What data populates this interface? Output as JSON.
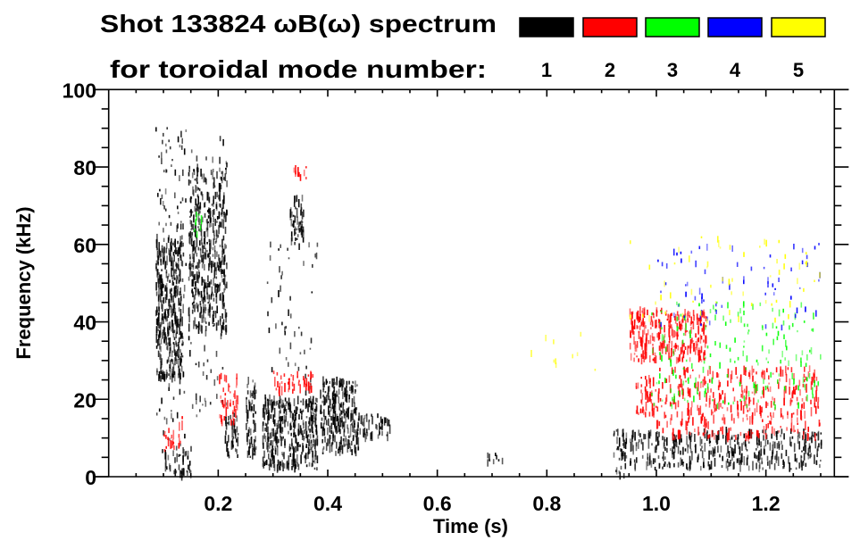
{
  "chart_data": {
    "type": "heatmap",
    "title_line1": "Shot 133824 ωB(ω) spectrum",
    "title_line2": "for toroidal mode number:",
    "xlabel": "Time (s)",
    "ylabel": "Frequency (kHz)",
    "xlim": [
      0,
      1.325
    ],
    "ylim": [
      0,
      100
    ],
    "xticks": [
      0.2,
      0.4,
      0.6,
      0.8,
      1.0,
      1.2
    ],
    "xtick_labels": [
      "0.2",
      "0.4",
      "0.6",
      "0.8",
      "1.0",
      "1.2"
    ],
    "yticks": [
      0,
      20,
      40,
      60,
      80,
      100
    ],
    "ytick_labels": [
      "0",
      "20",
      "40",
      "60",
      "80",
      "100"
    ],
    "x_minor_step": 0.05,
    "y_minor_step": 5,
    "legend": [
      {
        "mode": "1",
        "color": "#000000"
      },
      {
        "mode": "2",
        "color": "#ff0000"
      },
      {
        "mode": "3",
        "color": "#00ff00"
      },
      {
        "mode": "4",
        "color": "#0000ff"
      },
      {
        "mode": "5",
        "color": "#ffff00"
      }
    ],
    "regions": [
      {
        "mode": 1,
        "t": [
          0.085,
          0.135
        ],
        "f": [
          25,
          62
        ],
        "density": 1.0
      },
      {
        "mode": 1,
        "t": [
          0.085,
          0.14
        ],
        "f": [
          5,
          90
        ],
        "density": 0.12
      },
      {
        "mode": 1,
        "t": [
          0.145,
          0.215
        ],
        "f": [
          38,
          80
        ],
        "density": 0.7
      },
      {
        "mode": 1,
        "t": [
          0.145,
          0.215
        ],
        "f": [
          15,
          88
        ],
        "density": 0.1
      },
      {
        "mode": 1,
        "t": [
          0.095,
          0.15
        ],
        "f": [
          0,
          8
        ],
        "density": 0.5
      },
      {
        "mode": 1,
        "t": [
          0.21,
          0.235
        ],
        "f": [
          5,
          16
        ],
        "density": 0.8
      },
      {
        "mode": 1,
        "t": [
          0.25,
          0.268
        ],
        "f": [
          5,
          25
        ],
        "density": 0.9
      },
      {
        "mode": 1,
        "t": [
          0.28,
          0.38
        ],
        "f": [
          2,
          20
        ],
        "density": 1.0
      },
      {
        "mode": 1,
        "t": [
          0.28,
          0.38
        ],
        "f": [
          20,
          60
        ],
        "density": 0.07
      },
      {
        "mode": 1,
        "t": [
          0.33,
          0.355
        ],
        "f": [
          60,
          72
        ],
        "density": 0.9
      },
      {
        "mode": 1,
        "t": [
          0.385,
          0.455
        ],
        "f": [
          6,
          25
        ],
        "density": 0.95
      },
      {
        "mode": 1,
        "t": [
          0.455,
          0.515
        ],
        "f": [
          10,
          16
        ],
        "density": 0.7
      },
      {
        "mode": 1,
        "t": [
          0.69,
          0.72
        ],
        "f": [
          3,
          6
        ],
        "density": 0.5
      },
      {
        "mode": 1,
        "t": [
          0.92,
          0.945
        ],
        "f": [
          0,
          12
        ],
        "density": 0.6
      },
      {
        "mode": 1,
        "t": [
          0.95,
          1.3
        ],
        "f": [
          2,
          12
        ],
        "density": 0.55
      },
      {
        "mode": 2,
        "t": [
          0.1,
          0.135
        ],
        "f": [
          6,
          16
        ],
        "density": 0.35
      },
      {
        "mode": 2,
        "t": [
          0.2,
          0.235
        ],
        "f": [
          14,
          26
        ],
        "density": 0.5
      },
      {
        "mode": 2,
        "t": [
          0.3,
          0.375
        ],
        "f": [
          22,
          27
        ],
        "density": 0.6
      },
      {
        "mode": 2,
        "t": [
          0.335,
          0.36
        ],
        "f": [
          77,
          80
        ],
        "density": 0.6
      },
      {
        "mode": 2,
        "t": [
          0.95,
          1.09
        ],
        "f": [
          30,
          43
        ],
        "density": 0.8
      },
      {
        "mode": 2,
        "t": [
          0.96,
          1.0
        ],
        "f": [
          16,
          26
        ],
        "density": 0.6
      },
      {
        "mode": 2,
        "t": [
          1.0,
          1.3
        ],
        "f": [
          10,
          28
        ],
        "density": 0.35
      },
      {
        "mode": 3,
        "t": [
          0.155,
          0.17
        ],
        "f": [
          62,
          68
        ],
        "density": 0.5
      },
      {
        "mode": 3,
        "t": [
          0.99,
          1.3
        ],
        "f": [
          18,
          45
        ],
        "density": 0.12
      },
      {
        "mode": 4,
        "t": [
          1.0,
          1.3
        ],
        "f": [
          38,
          62
        ],
        "density": 0.05
      },
      {
        "mode": 5,
        "t": [
          0.95,
          1.3
        ],
        "f": [
          40,
          62
        ],
        "density": 0.04
      },
      {
        "mode": 5,
        "t": [
          0.75,
          0.9
        ],
        "f": [
          25,
          37
        ],
        "density": 0.03
      }
    ]
  }
}
